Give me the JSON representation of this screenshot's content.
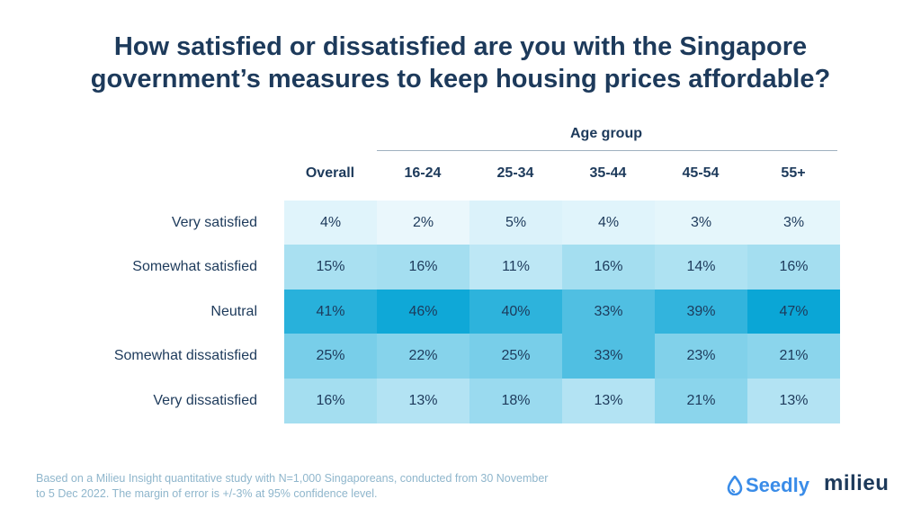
{
  "title_lines": [
    "How satisfied or dissatisfied are you with the Singapore",
    "government’s measures to keep housing prices affordable?"
  ],
  "group_label": "Age group",
  "footnote_lines": [
    "Based on a Milieu Insight quantitative study with N=1,000 Singaporeans, conducted from 30 November",
    "to 5 Dec 2022. The margin of error is +/-3% at 95% confidence level."
  ],
  "logos": {
    "seedly": "Seedly",
    "milieu": "milieu",
    "seedly_icon": "droplet-icon"
  },
  "colors": {
    "text": "#1d3a5b",
    "heat_low": "#f4fbfe",
    "heat_high": "#0aa6d6",
    "footnote": "#8fb6cc"
  },
  "chart_data": {
    "type": "heatmap",
    "columns": [
      "Overall",
      "16-24",
      "25-34",
      "35-44",
      "45-54",
      "55+"
    ],
    "rows": [
      "Very satisfied",
      "Somewhat satisfied",
      "Neutral",
      "Somewhat dissatisfied",
      "Very dissatisfied"
    ],
    "values": [
      [
        4,
        2,
        5,
        4,
        3,
        3
      ],
      [
        15,
        16,
        11,
        16,
        14,
        16
      ],
      [
        41,
        46,
        40,
        33,
        39,
        47
      ],
      [
        25,
        22,
        25,
        33,
        23,
        21
      ],
      [
        16,
        13,
        18,
        13,
        21,
        13
      ]
    ],
    "value_suffix": "%",
    "column_group": "Age group"
  }
}
